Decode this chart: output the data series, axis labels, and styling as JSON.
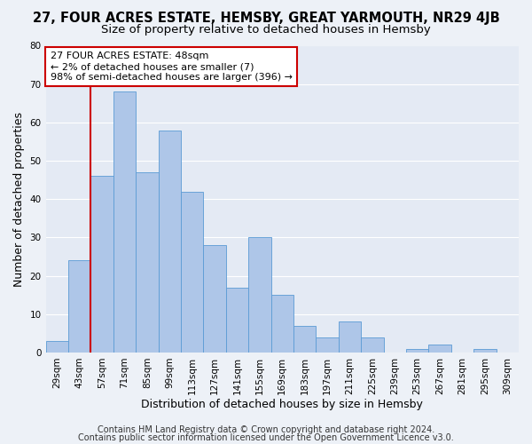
{
  "title": "27, FOUR ACRES ESTATE, HEMSBY, GREAT YARMOUTH, NR29 4JB",
  "subtitle": "Size of property relative to detached houses in Hemsby",
  "xlabel": "Distribution of detached houses by size in Hemsby",
  "ylabel": "Number of detached properties",
  "categories": [
    "29sqm",
    "43sqm",
    "57sqm",
    "71sqm",
    "85sqm",
    "99sqm",
    "113sqm",
    "127sqm",
    "141sqm",
    "155sqm",
    "169sqm",
    "183sqm",
    "197sqm",
    "211sqm",
    "225sqm",
    "239sqm",
    "253sqm",
    "267sqm",
    "281sqm",
    "295sqm",
    "309sqm"
  ],
  "values": [
    3,
    24,
    46,
    68,
    47,
    58,
    42,
    28,
    17,
    30,
    15,
    7,
    4,
    8,
    4,
    0,
    1,
    2,
    0,
    1,
    0
  ],
  "bar_color": "#aec6e8",
  "bar_edge_color": "#5b9bd5",
  "highlight_bar_index": 1,
  "highlight_color": "#cc0000",
  "ylim": [
    0,
    80
  ],
  "yticks": [
    0,
    10,
    20,
    30,
    40,
    50,
    60,
    70,
    80
  ],
  "annotation_text": "27 FOUR ACRES ESTATE: 48sqm\n← 2% of detached houses are smaller (7)\n98% of semi-detached houses are larger (396) →",
  "footer1": "Contains HM Land Registry data © Crown copyright and database right 2024.",
  "footer2": "Contains public sector information licensed under the Open Government Licence v3.0.",
  "bg_color": "#edf1f7",
  "plot_bg_color": "#e4eaf4",
  "grid_color": "#ffffff",
  "title_fontsize": 10.5,
  "subtitle_fontsize": 9.5,
  "axis_label_fontsize": 9,
  "tick_fontsize": 7.5,
  "annotation_fontsize": 8,
  "footer_fontsize": 7
}
